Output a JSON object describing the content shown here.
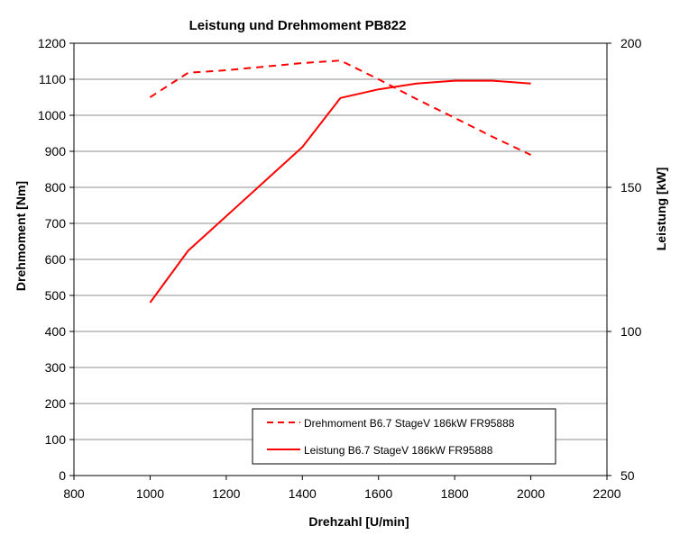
{
  "chart_data": {
    "type": "line",
    "title": "Leistung und Drehmoment PB822",
    "xlabel": "Drehzahl [U/min]",
    "ylabel_left": "Drehmoment [Nm]",
    "ylabel_right": "Leistung [kW]",
    "xlim": [
      800,
      2200
    ],
    "ylim_left": [
      0,
      1200
    ],
    "ylim_right": [
      50,
      200
    ],
    "x_ticks": [
      "800",
      "1000",
      "1200",
      "1400",
      "1600",
      "1800",
      "2000",
      "2200"
    ],
    "y_left_ticks": [
      "0",
      "100",
      "200",
      "300",
      "400",
      "500",
      "600",
      "700",
      "800",
      "900",
      "1000",
      "1100",
      "1200"
    ],
    "y_right_ticks": [
      "50",
      "100",
      "150",
      "200"
    ],
    "grid": "horizontal",
    "legend_position": "bottom-right",
    "series": [
      {
        "name": "Drehmoment B6.7 StageV  186kW FR95888",
        "axis": "left",
        "style": "dashed",
        "color": "#ff0000",
        "x": [
          1000,
          1100,
          1200,
          1300,
          1400,
          1500,
          1600,
          1700,
          1800,
          1900,
          2000
        ],
        "y": [
          1050,
          1118,
          1125,
          1135,
          1145,
          1152,
          1100,
          1045,
          993,
          940,
          890
        ]
      },
      {
        "name": "Leistung B6.7 StageV  186kW FR95888",
        "axis": "right",
        "style": "solid",
        "color": "#ff0000",
        "x": [
          1000,
          1100,
          1200,
          1300,
          1400,
          1500,
          1600,
          1700,
          1800,
          1900,
          2000
        ],
        "y": [
          110,
          128,
          140,
          152,
          164,
          181,
          184,
          186,
          187,
          187,
          186
        ]
      }
    ]
  }
}
